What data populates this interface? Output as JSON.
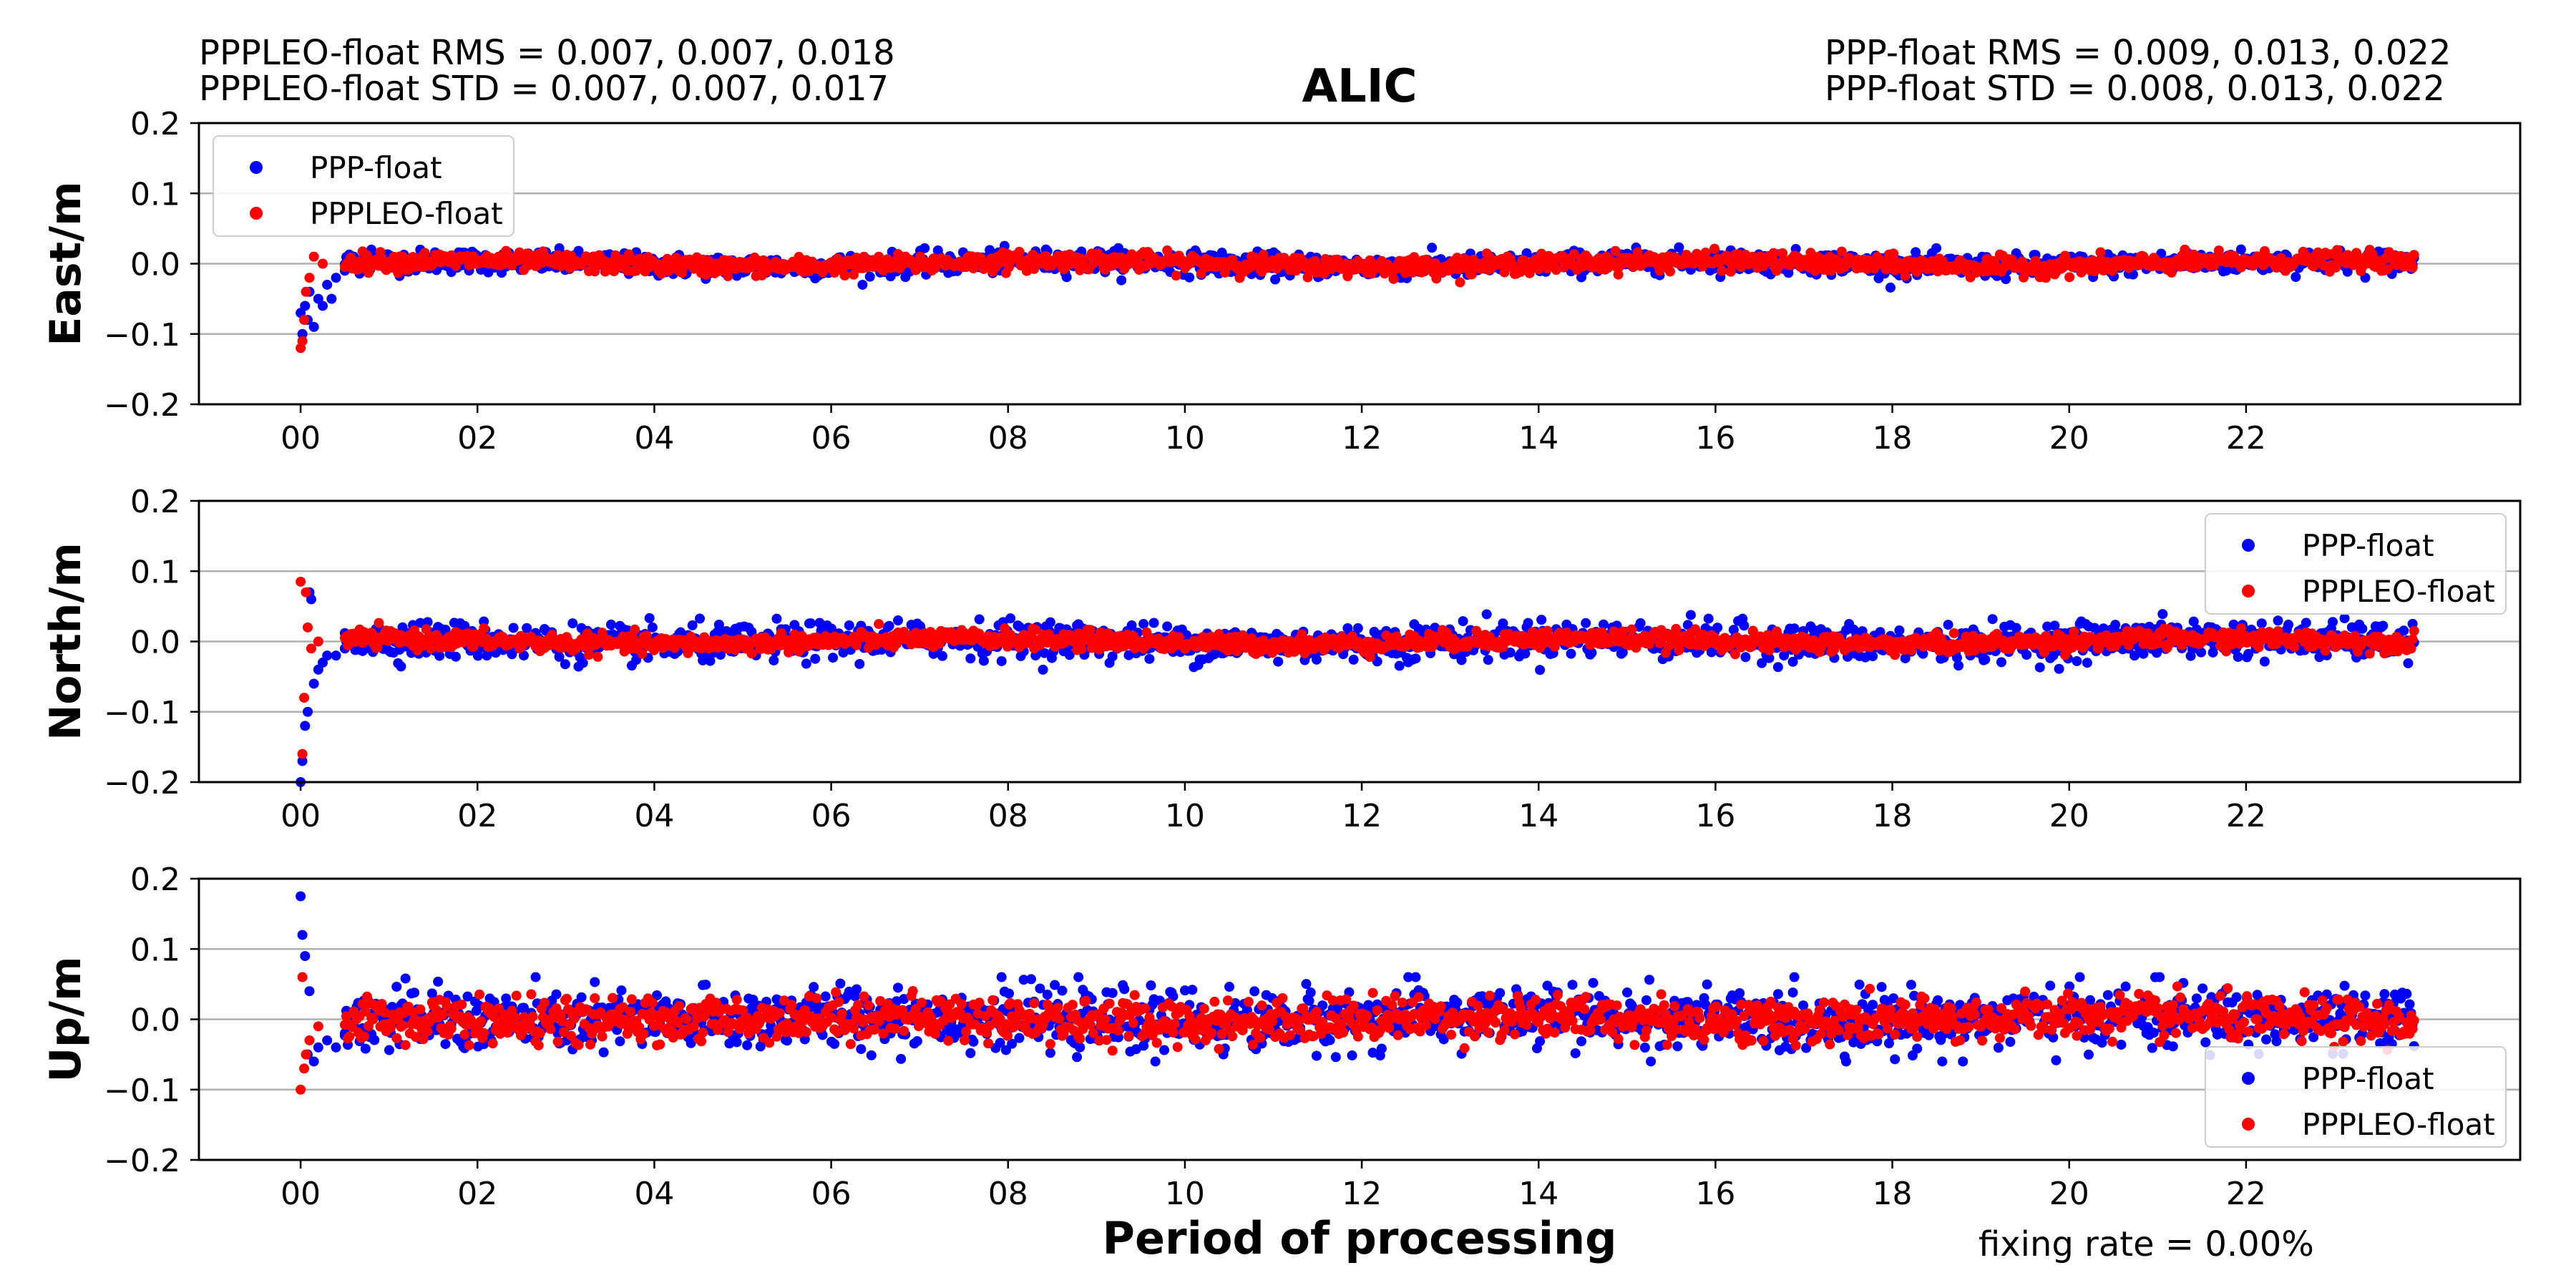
{
  "figure": {
    "title": "ALIC",
    "xlabel": "Period of processing",
    "stats": {
      "pppleo_rms": "PPPLEO-float RMS =  0.007, 0.007, 0.018",
      "pppleo_std": "PPPLEO-float STD =  0.007, 0.007, 0.017",
      "ppp_rms": "PPP-float RMS =  0.009, 0.013, 0.022",
      "ppp_std": "PPP-float STD =  0.008, 0.013, 0.022"
    },
    "fixing_rate": "fixing rate =   0.00%"
  },
  "colors": {
    "ppp": "#0000ff",
    "pppleo": "#ff0000",
    "grid": "#b0b0b0"
  },
  "chart_data": [
    {
      "type": "scatter",
      "ylabel": "East/m",
      "ylim": [
        -0.2,
        0.2
      ],
      "yticks": [
        "0.2",
        "0.1",
        "0.0",
        "−0.1",
        "−0.2"
      ],
      "xlim": [
        -1.15,
        25.1
      ],
      "xticks": [
        "00",
        "02",
        "04",
        "06",
        "08",
        "10",
        "12",
        "14",
        "16",
        "18",
        "20",
        "22"
      ],
      "grid": true,
      "legend": "top-left",
      "series": [
        {
          "name": "PPP-float",
          "color": "#0000ff",
          "rms": 0.009,
          "std": 0.008,
          "conv": {
            "x": [
              0.0,
              0.02,
              0.05,
              0.08,
              0.1,
              0.15,
              0.2,
              0.25,
              0.3,
              0.35,
              0.4,
              0.5,
              0.6,
              0.8
            ],
            "y": [
              -0.07,
              -0.1,
              -0.06,
              -0.08,
              -0.04,
              -0.09,
              -0.05,
              -0.06,
              -0.03,
              -0.05,
              -0.02,
              -0.01,
              0.01,
              0.02
            ]
          }
        },
        {
          "name": "PPPLEO-float",
          "color": "#ff0000",
          "rms": 0.007,
          "std": 0.007,
          "conv": {
            "x": [
              0.0,
              0.02,
              0.04,
              0.06,
              0.1,
              0.15,
              0.25
            ],
            "y": [
              -0.12,
              -0.11,
              -0.08,
              -0.04,
              -0.02,
              0.01,
              0.0
            ]
          }
        }
      ]
    },
    {
      "type": "scatter",
      "ylabel": "North/m",
      "ylim": [
        -0.2,
        0.2
      ],
      "yticks": [
        "0.2",
        "0.1",
        "0.0",
        "−0.1",
        "−0.2"
      ],
      "xlim": [
        -1.15,
        25.1
      ],
      "xticks": [
        "00",
        "02",
        "04",
        "06",
        "08",
        "10",
        "12",
        "14",
        "16",
        "18",
        "20",
        "22"
      ],
      "grid": true,
      "legend": "top-right",
      "series": [
        {
          "name": "PPP-float",
          "color": "#0000ff",
          "rms": 0.013,
          "std": 0.013,
          "conv": {
            "x": [
              0.0,
              0.02,
              0.05,
              0.08,
              0.1,
              0.12,
              0.15,
              0.2,
              0.25,
              0.3,
              0.4,
              0.5
            ],
            "y": [
              -0.2,
              -0.17,
              -0.12,
              -0.1,
              0.07,
              0.06,
              -0.06,
              -0.04,
              -0.03,
              -0.02,
              -0.02,
              -0.01
            ]
          }
        },
        {
          "name": "PPPLEO-float",
          "color": "#ff0000",
          "rms": 0.007,
          "std": 0.007,
          "conv": {
            "x": [
              0.0,
              0.02,
              0.04,
              0.06,
              0.08,
              0.12,
              0.2
            ],
            "y": [
              0.085,
              -0.16,
              -0.08,
              0.07,
              0.02,
              -0.01,
              0.0
            ]
          }
        }
      ]
    },
    {
      "type": "scatter",
      "ylabel": "Up/m",
      "ylim": [
        -0.2,
        0.2
      ],
      "yticks": [
        "0.2",
        "0.1",
        "0.0",
        "−0.1",
        "−0.2"
      ],
      "xlim": [
        -1.15,
        25.1
      ],
      "xticks": [
        "00",
        "02",
        "04",
        "06",
        "08",
        "10",
        "12",
        "14",
        "16",
        "18",
        "20",
        "22"
      ],
      "grid": true,
      "legend": "bottom-right",
      "series": [
        {
          "name": "PPP-float",
          "color": "#0000ff",
          "rms": 0.022,
          "std": 0.022,
          "conv": {
            "x": [
              0.0,
              0.02,
              0.05,
              0.08,
              0.1,
              0.15,
              0.2,
              0.3,
              0.4,
              0.5
            ],
            "y": [
              0.175,
              0.12,
              0.09,
              -0.05,
              0.04,
              -0.06,
              -0.04,
              -0.03,
              -0.04,
              -0.02
            ]
          }
        },
        {
          "name": "PPPLEO-float",
          "color": "#ff0000",
          "rms": 0.018,
          "std": 0.017,
          "conv": {
            "x": [
              0.0,
              0.02,
              0.04,
              0.06,
              0.1,
              0.2
            ],
            "y": [
              -0.1,
              0.06,
              -0.07,
              -0.05,
              -0.03,
              -0.01
            ]
          }
        }
      ]
    }
  ]
}
